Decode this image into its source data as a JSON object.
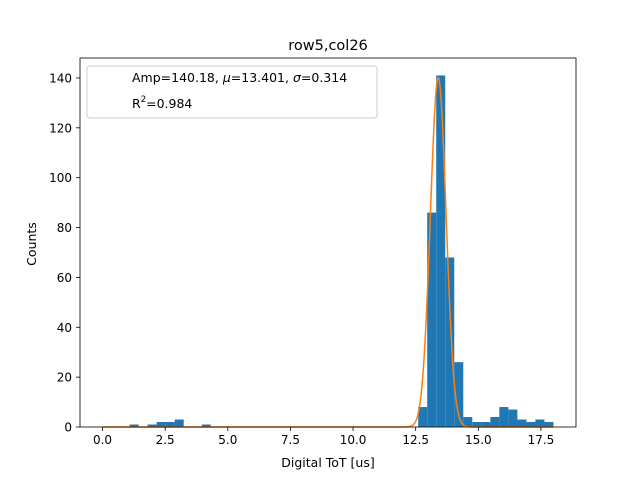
{
  "chart_data": {
    "type": "bar",
    "title": "row5,col26",
    "xlabel": "Digital ToT [us]",
    "ylabel": "Counts",
    "xlim": [
      -0.9,
      18.9
    ],
    "ylim": [
      0,
      148
    ],
    "xticks": [
      0.0,
      2.5,
      5.0,
      7.5,
      10.0,
      12.5,
      15.0,
      17.5
    ],
    "xtick_labels": [
      "0.0",
      "2.5",
      "5.0",
      "7.5",
      "10.0",
      "12.5",
      "15.0",
      "17.5"
    ],
    "yticks": [
      0,
      20,
      40,
      60,
      80,
      100,
      120,
      140
    ],
    "ytick_labels": [
      "0",
      "20",
      "40",
      "60",
      "80",
      "100",
      "120",
      "140"
    ],
    "grid": false,
    "legend_placement": "top-left",
    "legend_entries": [
      {
        "prefix": "Amp=140.18, ",
        "mu_symbol": "μ",
        "mu_text": "=13.401, ",
        "sigma_symbol": "σ",
        "sigma_text": "=0.314"
      },
      {
        "r_base": "R",
        "r_sup": "2",
        "r_text": "=0.984"
      }
    ],
    "histogram": {
      "bin_width": 0.36,
      "x_start": [
        1.08,
        1.8,
        2.16,
        2.52,
        2.88,
        3.96,
        12.6,
        12.96,
        13.32,
        13.68,
        14.04,
        14.4,
        14.76,
        15.12,
        15.48,
        15.84,
        16.2,
        16.56,
        16.92,
        17.28,
        17.64
      ],
      "counts": [
        1,
        1,
        2,
        2,
        3,
        1,
        8,
        86,
        141,
        68,
        26,
        4,
        2,
        2,
        4,
        8,
        7,
        3,
        2,
        3,
        2
      ]
    },
    "fit": {
      "model": "gaussian",
      "amp": 140.18,
      "mu": 13.401,
      "sigma": 0.314,
      "r2": 0.984,
      "x_range": [
        0.0,
        18.0
      ]
    },
    "colors": {
      "bars": "#1f77b4",
      "fit": "#ff7f0e",
      "axes": "#000000"
    }
  }
}
